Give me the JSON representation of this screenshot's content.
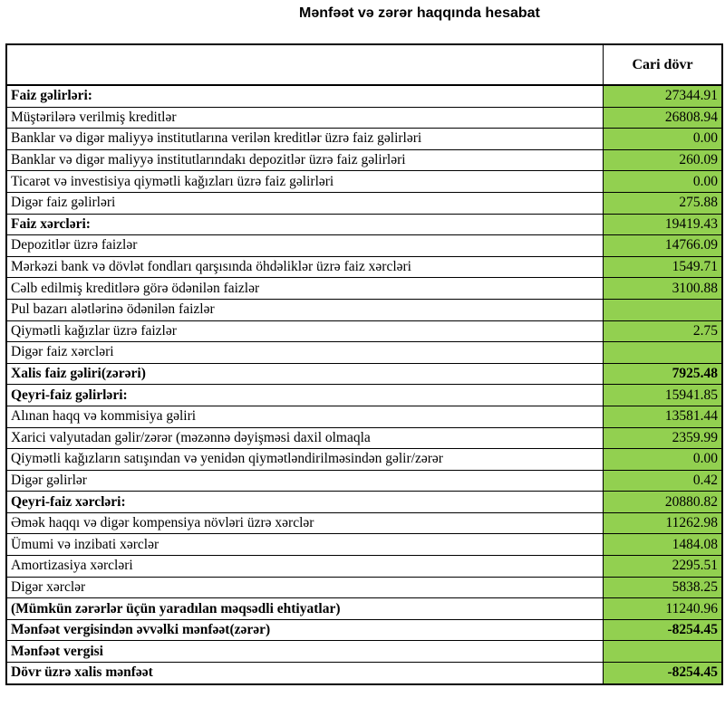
{
  "title": "Mənfəət və zərər haqqında hesabat",
  "colors": {
    "value_cell_fill": "#92D050",
    "border": "#000000",
    "text": "#000000"
  },
  "table": {
    "header": {
      "label_col": "",
      "value_col": "Cari dövr"
    },
    "rows": [
      {
        "label": "Faiz gəlirləri:",
        "value": "27344.91",
        "bold": true,
        "value_bold": false
      },
      {
        "label": "Müştərilərə verilmiş kreditlər",
        "value": "26808.94",
        "bold": false,
        "value_bold": false
      },
      {
        "label": "Banklar və digər maliyyə institutlarına verilən kreditlər üzrə faiz gəlirləri",
        "value": "0.00",
        "bold": false,
        "value_bold": false
      },
      {
        "label": "Banklar və digər maliyyə institutlarındakı depozitlər üzrə faiz gəlirləri",
        "value": "260.09",
        "bold": false,
        "value_bold": false
      },
      {
        "label": "Ticarət və investisiya qiymətli kağızları üzrə faiz gəlirləri",
        "value": "0.00",
        "bold": false,
        "value_bold": false
      },
      {
        "label": "Digər faiz gəlirləri",
        "value": "275.88",
        "bold": false,
        "value_bold": false
      },
      {
        "label": "Faiz xərcləri:",
        "value": "19419.43",
        "bold": true,
        "value_bold": false
      },
      {
        "label": "Depozitlər üzrə faizlər",
        "value": "14766.09",
        "bold": false,
        "value_bold": false
      },
      {
        "label": "Mərkəzi bank və dövlət fondları qarşısında öhdəliklər üzrə faiz xərcləri",
        "value": "1549.71",
        "bold": false,
        "value_bold": false
      },
      {
        "label": "Cəlb edilmiş kreditlərə görə ödənilən faizlər",
        "value": "3100.88",
        "bold": false,
        "value_bold": false
      },
      {
        "label": "Pul bazarı alətlərinə ödənilən faizlər",
        "value": "",
        "bold": false,
        "value_bold": false
      },
      {
        "label": "Qiymətli kağızlar üzrə faizlər",
        "value": "2.75",
        "bold": false,
        "value_bold": false
      },
      {
        "label": "Digər faiz xərcləri",
        "value": "",
        "bold": false,
        "value_bold": false
      },
      {
        "label": "Xalis faiz gəliri(zərəri)",
        "value": "7925.48",
        "bold": true,
        "value_bold": true
      },
      {
        "label": "Qeyri-faiz gəlirləri:",
        "value": "15941.85",
        "bold": true,
        "value_bold": false
      },
      {
        "label": "Alınan haqq və kommisiya gəliri",
        "value": "13581.44",
        "bold": false,
        "value_bold": false
      },
      {
        "label": "Xarici valyutadan gəlir/zərər (məzənnə dəyişməsi daxil olmaqla",
        "value": "2359.99",
        "bold": false,
        "value_bold": false
      },
      {
        "label": "Qiymətli kağızların satışından və yenidən qiymətləndirilməsindən gəlir/zərər",
        "value": "0.00",
        "bold": false,
        "value_bold": false
      },
      {
        "label": "Digər gəlirlər",
        "value": "0.42",
        "bold": false,
        "value_bold": false
      },
      {
        "label": "Qeyri-faiz xərcləri:",
        "value": "20880.82",
        "bold": true,
        "value_bold": false
      },
      {
        "label": "Əmək haqqı və digər kompensiya növləri üzrə xərclər",
        "value": "11262.98",
        "bold": false,
        "value_bold": false
      },
      {
        "label": "Ümumi və inzibati xərclər",
        "value": "1484.08",
        "bold": false,
        "value_bold": false
      },
      {
        "label": "Amortizasiya xərcləri",
        "value": "2295.51",
        "bold": false,
        "value_bold": false
      },
      {
        "label": "Digər xərclər",
        "value": "5838.25",
        "bold": false,
        "value_bold": false
      },
      {
        "label": "(Mümkün zərərlər üçün yaradılan məqsədli ehtiyatlar)",
        "value": "11240.96",
        "bold": true,
        "value_bold": false
      },
      {
        "label": "Mənfəət vergisindən əvvəlki mənfəət(zərər)",
        "value": "-8254.45",
        "bold": true,
        "value_bold": true
      },
      {
        "label": "Mənfəət vergisi",
        "value": "",
        "bold": true,
        "value_bold": false
      },
      {
        "label": "Dövr üzrə xalis mənfəət",
        "value": "-8254.45",
        "bold": true,
        "value_bold": true
      }
    ]
  }
}
